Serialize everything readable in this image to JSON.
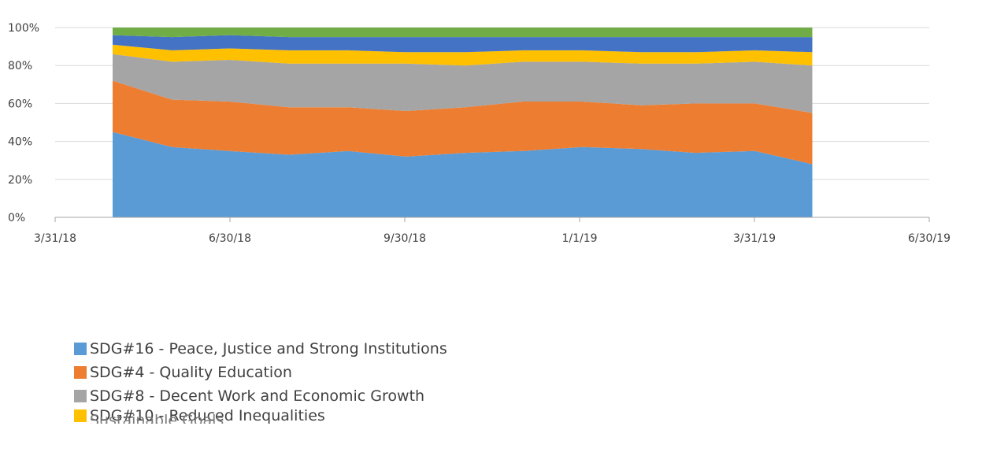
{
  "chart_data": {
    "type": "area",
    "stacking": "percent",
    "title": "",
    "xlabel": "",
    "ylabel": "",
    "x_axis": {
      "type": "date",
      "range": [
        "2018-03-31",
        "2019-06-30"
      ],
      "ticks": [
        "3/31/18",
        "6/30/18",
        "9/30/18",
        "1/1/19",
        "3/31/19",
        "6/30/19"
      ]
    },
    "y_axis": {
      "range": [
        0,
        100
      ],
      "ticks": [
        "0%",
        "20%",
        "40%",
        "60%",
        "80%",
        "100%"
      ]
    },
    "grid": true,
    "legend_position": "bottom-left",
    "data_range": [
      "2018-04-30",
      "2019-04-30"
    ],
    "x": [
      "2018-04-30",
      "2018-05-31",
      "2018-06-30",
      "2018-07-31",
      "2018-08-31",
      "2018-09-30",
      "2018-10-31",
      "2018-11-30",
      "2018-12-31",
      "2019-01-31",
      "2019-02-28",
      "2019-03-31",
      "2019-04-30"
    ],
    "series": [
      {
        "name": "SDG#16 - Peace, Justice and Strong Institutions",
        "color": "#5B9BD5",
        "values": [
          45,
          37,
          35,
          33,
          35,
          32,
          34,
          35,
          37,
          36,
          34,
          35,
          28
        ]
      },
      {
        "name": "SDG#4 - Quality Education",
        "color": "#ED7D31",
        "values": [
          27,
          25,
          26,
          25,
          23,
          24,
          24,
          26,
          24,
          23,
          26,
          25,
          27
        ]
      },
      {
        "name": "SDG#8 - Decent Work and Economic Growth",
        "color": "#A5A5A5",
        "values": [
          14,
          20,
          22,
          23,
          23,
          25,
          22,
          21,
          21,
          22,
          21,
          22,
          25
        ]
      },
      {
        "name": "SDG#10 - Reduced Inequalities",
        "color": "#FFC000",
        "values": [
          5,
          6,
          6,
          7,
          7,
          6,
          7,
          6,
          6,
          6,
          6,
          6,
          7
        ]
      },
      {
        "name": "",
        "color": "#4472C4",
        "values": [
          5,
          7,
          7,
          7,
          7,
          8,
          8,
          7,
          7,
          8,
          8,
          7,
          8
        ]
      },
      {
        "name": "",
        "color": "#70AD47",
        "values": [
          4,
          5,
          4,
          5,
          5,
          5,
          5,
          5,
          5,
          5,
          5,
          5,
          5
        ]
      }
    ],
    "legend_overlap_text": "Sustainable Goals"
  }
}
